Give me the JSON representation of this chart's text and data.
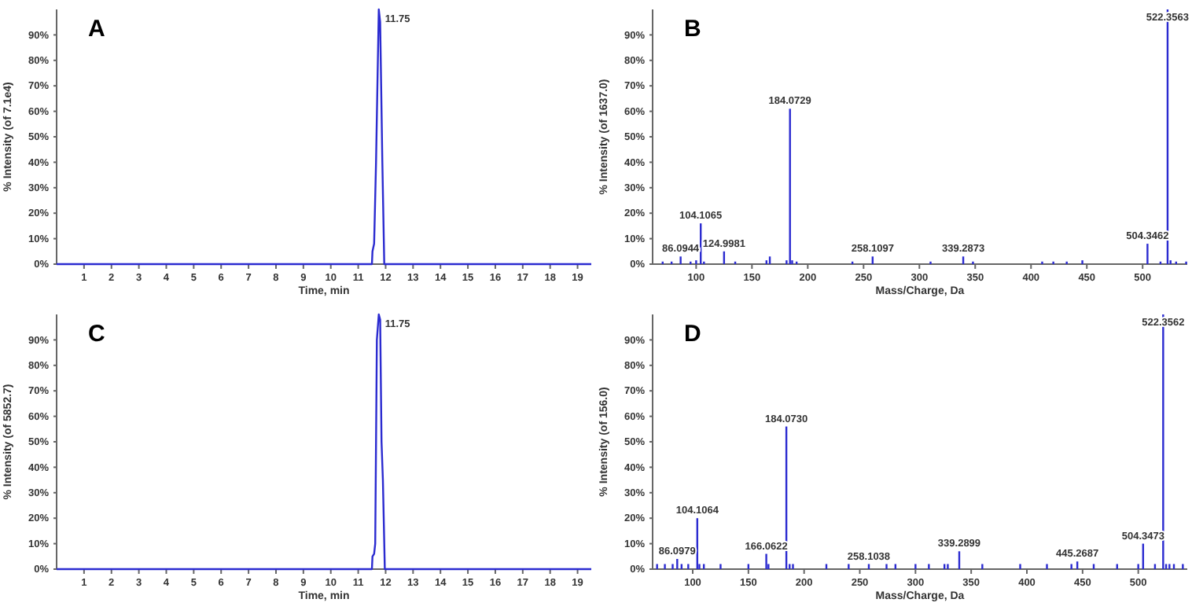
{
  "chart_data": [
    {
      "type": "line",
      "title": "A",
      "xlabel": "Time, min",
      "ylabel": "% Intensity (of 7.1e4)",
      "color": "#2b2bd0",
      "x": [
        0,
        11.5,
        11.52,
        11.58,
        11.65,
        11.75,
        11.8,
        11.88,
        11.95,
        19.5
      ],
      "values": [
        0,
        0,
        5,
        8,
        40,
        100,
        95,
        40,
        0,
        0
      ],
      "xlim": [
        0,
        19.5
      ],
      "xticks": [
        1,
        2,
        3,
        4,
        5,
        6,
        7,
        8,
        9,
        10,
        11,
        12,
        13,
        14,
        15,
        16,
        17,
        18,
        19
      ],
      "ylim": [
        0,
        100
      ],
      "yticks": [
        {
          "value": 0,
          "label": "0%"
        },
        {
          "value": 10,
          "label": "10%"
        },
        {
          "value": 20,
          "label": "20%"
        },
        {
          "value": 30,
          "label": "30%"
        },
        {
          "value": 40,
          "label": "40%"
        },
        {
          "value": 50,
          "label": "50%"
        },
        {
          "value": 60,
          "label": "60%"
        },
        {
          "value": 70,
          "label": "70%"
        },
        {
          "value": 80,
          "label": "80%"
        },
        {
          "value": 90,
          "label": "90%"
        }
      ],
      "annotations": [
        {
          "text": "11.75",
          "x": 11.75,
          "y": 100
        }
      ],
      "grid": false
    },
    {
      "type": "bar",
      "title": "B",
      "xlabel": "Mass/Charge, Da",
      "ylabel": "% Intensity (of 1637.0)",
      "color": "#2b2bd0",
      "x": [
        70,
        78,
        86.0944,
        95,
        100,
        104.1065,
        107,
        124.9981,
        135,
        163,
        166,
        181,
        184.0729,
        186,
        190,
        240,
        258.1097,
        310,
        339.2873,
        348,
        410,
        420,
        432,
        446,
        504.3462,
        516,
        522.3563,
        525,
        530,
        539
      ],
      "values": [
        1,
        1,
        3,
        1,
        1.5,
        16,
        1,
        5,
        1,
        1.5,
        3,
        1.5,
        61,
        1.5,
        1,
        1,
        3,
        1,
        3,
        1,
        1,
        1,
        1,
        1.5,
        8,
        1,
        100,
        1.5,
        1,
        1
      ],
      "annotations": [
        {
          "text": "86.0944",
          "x": 86.0944,
          "y": 3
        },
        {
          "text": "104.1065",
          "x": 104.1065,
          "y": 16
        },
        {
          "text": "124.9981",
          "x": 124.9981,
          "y": 5
        },
        {
          "text": "184.0729",
          "x": 184.0729,
          "y": 61
        },
        {
          "text": "258.1097",
          "x": 258.1097,
          "y": 3
        },
        {
          "text": "339.2873",
          "x": 339.2873,
          "y": 3
        },
        {
          "text": "504.3462",
          "x": 504.3462,
          "y": 8
        },
        {
          "text": "522.3563",
          "x": 522.3563,
          "y": 100
        }
      ],
      "xlim": [
        61,
        540
      ],
      "xticks": [
        100,
        150,
        200,
        250,
        300,
        350,
        400,
        450,
        500
      ],
      "ylim": [
        0,
        100
      ],
      "yticks": [
        {
          "value": 0,
          "label": "0%"
        },
        {
          "value": 10,
          "label": "10%"
        },
        {
          "value": 20,
          "label": "20%"
        },
        {
          "value": 30,
          "label": "30%"
        },
        {
          "value": 40,
          "label": "40%"
        },
        {
          "value": 50,
          "label": "50%"
        },
        {
          "value": 60,
          "label": "60%"
        },
        {
          "value": 70,
          "label": "70%"
        },
        {
          "value": 80,
          "label": "80%"
        },
        {
          "value": 90,
          "label": "90%"
        }
      ],
      "grid": false
    },
    {
      "type": "line",
      "title": "C",
      "xlabel": "Time, min",
      "ylabel": "% Intensity (of 5852.7)",
      "color": "#2b2bd0",
      "x": [
        0,
        11.5,
        11.52,
        11.58,
        11.62,
        11.68,
        11.75,
        11.8,
        11.85,
        11.9,
        11.97,
        19.5
      ],
      "values": [
        0,
        0,
        5,
        6,
        10,
        90,
        100,
        98,
        50,
        35,
        0,
        0
      ],
      "xlim": [
        0,
        19.5
      ],
      "xticks": [
        1,
        2,
        3,
        4,
        5,
        6,
        7,
        8,
        9,
        10,
        11,
        12,
        13,
        14,
        15,
        16,
        17,
        18,
        19
      ],
      "ylim": [
        0,
        100
      ],
      "yticks": [
        {
          "value": 0,
          "label": "0%"
        },
        {
          "value": 10,
          "label": "10%"
        },
        {
          "value": 20,
          "label": "20%"
        },
        {
          "value": 30,
          "label": "30%"
        },
        {
          "value": 40,
          "label": "40%"
        },
        {
          "value": 50,
          "label": "50%"
        },
        {
          "value": 60,
          "label": "60%"
        },
        {
          "value": 70,
          "label": "70%"
        },
        {
          "value": 80,
          "label": "80%"
        },
        {
          "value": 90,
          "label": "90%"
        }
      ],
      "annotations": [
        {
          "text": "11.75",
          "x": 11.75,
          "y": 100
        }
      ],
      "grid": false
    },
    {
      "type": "bar",
      "title": "D",
      "xlabel": "Mass/Charge, Da",
      "ylabel": "% Intensity (of 156.0)",
      "color": "#2b2bd0",
      "x": [
        68,
        75,
        82,
        86.0979,
        90,
        96,
        104.1064,
        106,
        110,
        125,
        150,
        166.0622,
        168,
        184.073,
        187,
        190,
        220,
        240,
        258.1038,
        274,
        282,
        300,
        312,
        326,
        329,
        339.2899,
        360,
        394,
        418,
        440,
        445.2687,
        460,
        481,
        500,
        504.3473,
        515,
        522.3562,
        525,
        528,
        532,
        540
      ],
      "values": [
        2,
        2,
        2,
        4,
        2,
        2,
        20,
        2,
        2,
        2,
        2,
        6,
        2,
        56,
        2,
        2,
        2,
        2,
        2,
        2,
        2,
        2,
        2,
        2,
        2,
        7,
        2,
        2,
        2,
        2,
        3,
        2,
        2,
        2,
        10,
        2,
        100,
        2,
        2,
        2,
        2
      ],
      "annotations": [
        {
          "text": "86.0979",
          "x": 86.0979,
          "y": 4
        },
        {
          "text": "104.1064",
          "x": 104.1064,
          "y": 20
        },
        {
          "text": "166.0622",
          "x": 166.0622,
          "y": 6
        },
        {
          "text": "184.0730",
          "x": 184.073,
          "y": 56
        },
        {
          "text": "258.1038",
          "x": 258.1038,
          "y": 2
        },
        {
          "text": "339.2899",
          "x": 339.2899,
          "y": 7
        },
        {
          "text": "445.2687",
          "x": 445.2687,
          "y": 3
        },
        {
          "text": "504.3473",
          "x": 504.3473,
          "y": 10
        },
        {
          "text": "522.3562",
          "x": 522.3562,
          "y": 100
        }
      ],
      "xlim": [
        64,
        544
      ],
      "xticks": [
        100,
        150,
        200,
        250,
        300,
        350,
        400,
        450,
        500
      ],
      "ylim": [
        0,
        100
      ],
      "yticks": [
        {
          "value": 0,
          "label": "0%"
        },
        {
          "value": 10,
          "label": "10%"
        },
        {
          "value": 20,
          "label": "20%"
        },
        {
          "value": 30,
          "label": "30%"
        },
        {
          "value": 40,
          "label": "40%"
        },
        {
          "value": 50,
          "label": "50%"
        },
        {
          "value": 60,
          "label": "60%"
        },
        {
          "value": 70,
          "label": "70%"
        },
        {
          "value": 80,
          "label": "80%"
        },
        {
          "value": 90,
          "label": "90%"
        }
      ],
      "grid": false
    }
  ]
}
